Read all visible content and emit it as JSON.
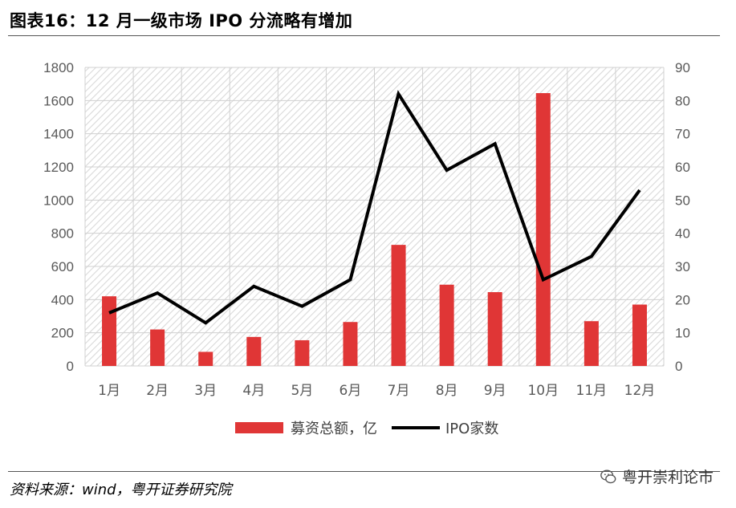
{
  "figure": {
    "title": "图表16：12 月一级市场 IPO 分流略有增加",
    "source": "资料来源：wind，粤开证券研究院",
    "watermark": "粤开崇利论市"
  },
  "chart_data": {
    "type": "bar+line",
    "categories": [
      "1月",
      "2月",
      "3月",
      "4月",
      "5月",
      "6月",
      "7月",
      "8月",
      "9月",
      "10月",
      "11月",
      "12月"
    ],
    "series": [
      {
        "name": "募资总额，亿",
        "type": "bar",
        "axis": "left",
        "color": "#e03636",
        "values": [
          420,
          220,
          85,
          175,
          155,
          265,
          730,
          490,
          445,
          1645,
          270,
          370
        ]
      },
      {
        "name": "IPO家数",
        "type": "line",
        "axis": "right",
        "color": "#000000",
        "values": [
          16,
          22,
          13,
          24,
          18,
          26,
          82,
          59,
          67,
          26,
          33,
          53
        ]
      }
    ],
    "y_left": {
      "min": 0,
      "max": 1800,
      "ticks": [
        0,
        200,
        400,
        600,
        800,
        1000,
        1200,
        1400,
        1600,
        1800
      ]
    },
    "y_right": {
      "min": 0,
      "max": 90,
      "ticks": [
        0,
        10,
        20,
        30,
        40,
        50,
        60,
        70,
        80,
        90
      ]
    },
    "grid": true,
    "legend_position": "bottom"
  }
}
